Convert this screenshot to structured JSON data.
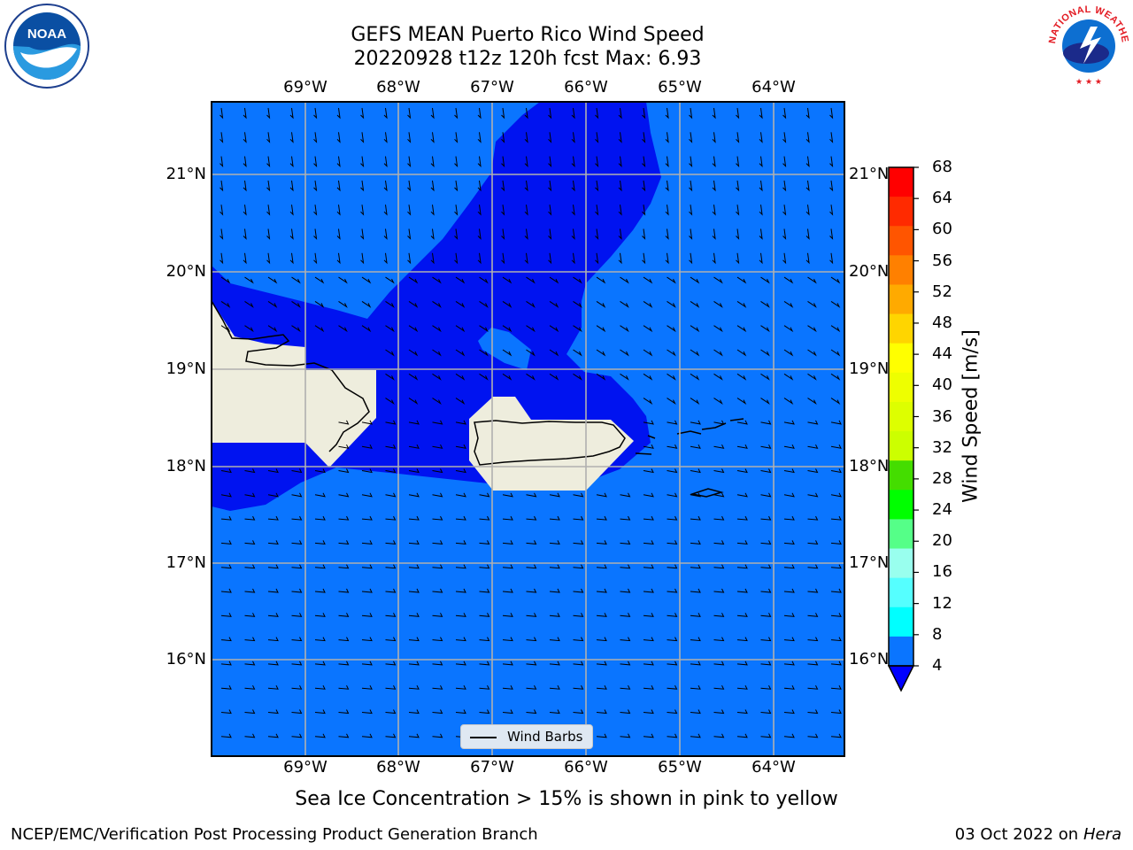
{
  "title": {
    "line1": "GEFS MEAN Puerto Rico Wind Speed",
    "line2": "20220928 t12z 120h fcst   Max: 6.93"
  },
  "map": {
    "lon_labels": [
      "69°W",
      "68°W",
      "67°W",
      "66°W",
      "65°W",
      "64°W"
    ],
    "lat_labels": [
      "21°N",
      "20°N",
      "19°N",
      "18°N",
      "17°N",
      "16°N"
    ],
    "extent": {
      "lon_min": -70.0,
      "lon_max": -63.25,
      "lat_min": 15.0,
      "lat_max": 21.75
    },
    "colors": {
      "land": "#eeeddd",
      "speed_4_8": "#0a75ff",
      "speed_below_4": "#0013f0",
      "grid": "#b0b0b0"
    }
  },
  "colorbar": {
    "title": "Wind Speed [m/s]",
    "ticks": [
      "68",
      "64",
      "60",
      "56",
      "52",
      "48",
      "44",
      "40",
      "36",
      "32",
      "28",
      "24",
      "20",
      "16",
      "12",
      "8",
      "4"
    ],
    "colors": [
      "#ff0000",
      "#ff2a00",
      "#ff5500",
      "#ff8000",
      "#ffaa00",
      "#ffd500",
      "#ffff00",
      "#eeff00",
      "#ddff00",
      "#ccff00",
      "#44dd00",
      "#00ff00",
      "#55ff88",
      "#99ffee",
      "#55ffff",
      "#00ffff",
      "#0a75ff"
    ],
    "extend_color": "#0000ff"
  },
  "legend": {
    "label": "Wind Barbs"
  },
  "note": "Sea Ice Concentration > 15% is shown in pink to yellow",
  "footer": {
    "left": "NCEP/EMC/Verification Post Processing Product Generation Branch",
    "right_date": "03 Oct 2022 on",
    "right_host": "Hera"
  },
  "logos": {
    "noaa_text": "NOAA",
    "nws_text": "NATIONAL WEATHER SERVICE"
  }
}
